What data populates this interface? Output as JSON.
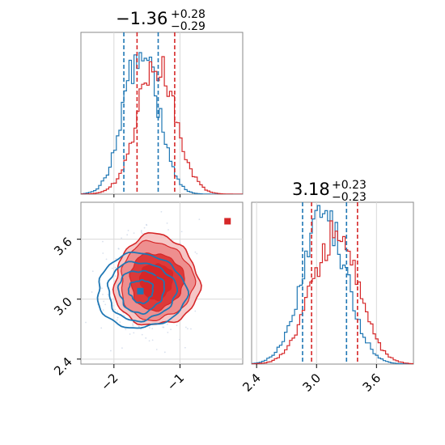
{
  "colors": {
    "series_a": "#1f77b4",
    "series_b": "#d62728",
    "grid": "#cfcfcf",
    "frame": "#888888"
  },
  "chart_data": {
    "type": "corner",
    "series": [
      {
        "color": "#1f77b4",
        "param1": {
          "median": -1.59,
          "lo": -1.85,
          "hi": -1.33
        },
        "param2": {
          "median": 3.08,
          "lo": 2.86,
          "hi": 3.3
        },
        "marker": [
          -1.6,
          3.08
        ]
      },
      {
        "color": "#d62728",
        "param1": {
          "median": -1.36,
          "lo": -1.65,
          "hi": -1.08
        },
        "param2": {
          "median": 3.18,
          "lo": 2.95,
          "hi": 3.41
        },
        "marker": [
          -1.4,
          3.2
        ]
      }
    ],
    "extra_marker": {
      "color": "#d62728",
      "x": -0.28,
      "y": 3.78
    },
    "titles": [
      {
        "value": "−1.36",
        "plus": "+0.28",
        "minus": "−0.29"
      },
      {
        "value": "3.18",
        "plus": "+0.23",
        "minus": "−0.23"
      }
    ],
    "param1_axis": {
      "range": [
        -2.5,
        -0.05
      ],
      "ticks": [
        -2,
        -1
      ],
      "tick_labels": [
        "−2",
        "−1"
      ]
    },
    "param2_axis": {
      "range": [
        2.35,
        3.97
      ],
      "ticks": [
        2.4,
        3.0,
        3.6
      ],
      "tick_labels": [
        "2.4",
        "3.0",
        "3.6"
      ]
    },
    "grid": true
  }
}
